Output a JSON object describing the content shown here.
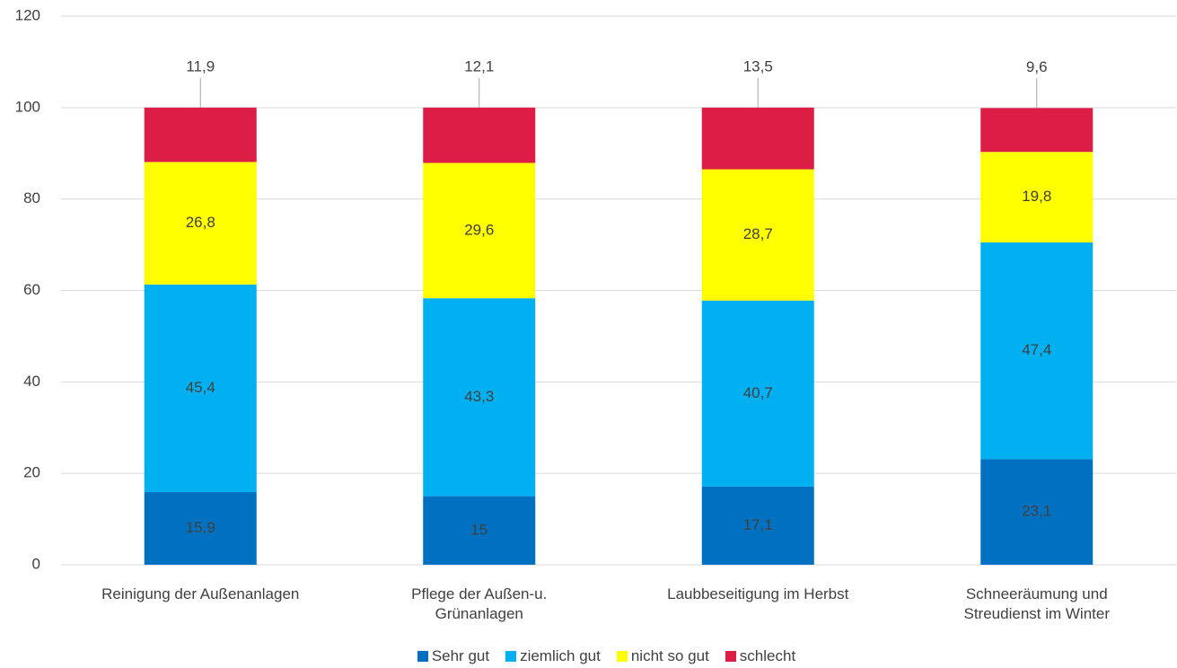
{
  "chart_data": {
    "type": "stacked_bar",
    "categories": [
      "Reinigung der Außenanlagen",
      "Pflege der Außen-u. Grünanlagen",
      "Laubbeseitigung im Herbst",
      "Schneeräumung und Streudienst im Winter"
    ],
    "series": [
      {
        "name": "Sehr gut",
        "color": "#0070c0",
        "values": [
          15.9,
          15,
          17.1,
          23.1
        ],
        "value_labels": [
          "15,9",
          "15",
          "17,1",
          "23,1"
        ]
      },
      {
        "name": "ziemlich gut",
        "color": "#00b0f0",
        "values": [
          45.4,
          43.3,
          40.7,
          47.4
        ],
        "value_labels": [
          "45,4",
          "43,3",
          "40,7",
          "47,4"
        ]
      },
      {
        "name": "nicht so gut",
        "color": "#ffff00",
        "values": [
          26.8,
          29.6,
          28.7,
          19.8
        ],
        "value_labels": [
          "26,8",
          "29,6",
          "28,7",
          "19,8"
        ]
      },
      {
        "name": "schlecht",
        "color": "#dc1e46",
        "values": [
          11.9,
          12.1,
          13.5,
          9.6
        ],
        "value_labels": [
          "11,9",
          "12,1",
          "13,5",
          "9,6"
        ]
      }
    ],
    "ylim": [
      0,
      120
    ],
    "yticks": [
      0,
      20,
      40,
      60,
      80,
      100,
      120
    ],
    "grid": true,
    "legend": "bottom"
  }
}
